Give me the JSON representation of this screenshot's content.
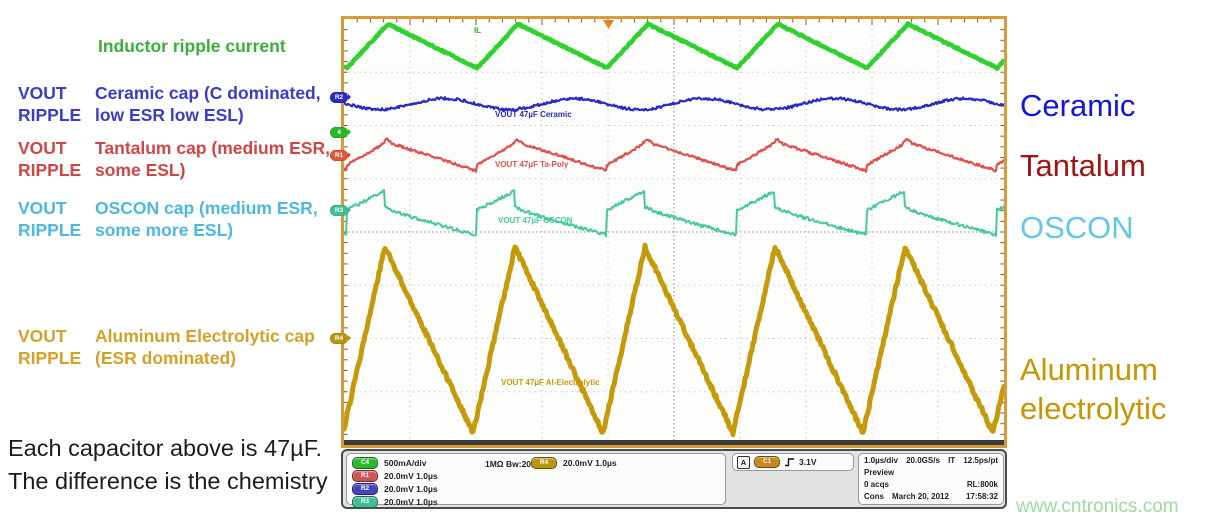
{
  "left_panel": {
    "inductor_label": {
      "text": "Inductor ripple current",
      "color": "#3aae3a"
    },
    "cap_rows": [
      {
        "col1_line1": "VOUT",
        "col1_line2": "RIPPLE",
        "desc_line1": "Ceramic cap (C dominated,",
        "desc_line2": "low ESR low ESL)",
        "color": "#3c3cc8"
      },
      {
        "col1_line1": "VOUT",
        "col1_line2": "RIPPLE",
        "desc_line1": "Tantalum cap (medium ESR,",
        "desc_line2": "some ESL)",
        "color": "#d04545"
      },
      {
        "col1_line1": "VOUT",
        "col1_line2": "RIPPLE",
        "desc_line1": "OSCON cap (medium ESR,",
        "desc_line2": "some more ESL)",
        "color": "#4cb8dc"
      },
      {
        "col1_line1": "VOUT",
        "col1_line2": "RIPPLE",
        "desc_line1": "Aluminum Electrolytic cap",
        "desc_line2": "(ESR dominated)",
        "color": "#d2a125"
      }
    ],
    "footnote_line1": "Each capacitor above is 47µF.",
    "footnote_line2": "The difference is the chemistry"
  },
  "right_panel": {
    "labels": [
      {
        "text": "Ceramic",
        "color": "#1515e0"
      },
      {
        "text": "Tantalum",
        "color": "#a01414"
      },
      {
        "text": "OSCON",
        "color": "#62c6e4"
      },
      {
        "text": "Aluminum",
        "color": "#c79500"
      },
      {
        "text": "electrolytic",
        "color": "#c79500"
      }
    ],
    "watermark": {
      "text": "www.cntronics.com",
      "color": "#9cdc9c"
    }
  },
  "scope": {
    "frame_color": "#d79b3a",
    "trigger_marker_color": "#e8821e",
    "trace_labels": [
      {
        "text": "IL",
        "color": "#2eb82e"
      },
      {
        "text": "VOUT 47µF Ceramic",
        "color": "#2a2ac0"
      },
      {
        "text": "VOUT 47µF Ta-Poly",
        "color": "#e05050"
      },
      {
        "text": "VOUT 47µF OSCON",
        "color": "#45c99a"
      },
      {
        "text": "VOUT 47µF Al-Electrolytic",
        "color": "#c49a0a"
      }
    ],
    "channel_markers": [
      {
        "label": "R2",
        "color": "#2a2ac0"
      },
      {
        "label": "4",
        "color": "#28b828"
      },
      {
        "label": "R1",
        "color": "#e05a3a"
      },
      {
        "label": "R3",
        "color": "#3fbf94"
      },
      {
        "label": "R4",
        "color": "#b8960f"
      }
    ],
    "status_bar": {
      "channels": [
        {
          "badge": "C4",
          "badge_color": "#2db82d",
          "text": "500mA/div"
        },
        {
          "badge": "R1",
          "badge_color": "#cf5454",
          "text": "20.0mV  1.0µs"
        },
        {
          "badge": "R2",
          "badge_color": "#4444bb",
          "text": "20.0mV  1.0µs"
        },
        {
          "badge": "R3",
          "badge_color": "#3fbf8f",
          "text": "20.0mV  1.0µs"
        }
      ],
      "coupling": "1MΩ Bw:20.0M",
      "r4": {
        "badge": "R4",
        "badge_color": "#b8960f",
        "text": "20.0mV  1.0µs"
      },
      "trigger": {
        "mode": "A",
        "source": "C1",
        "source_color": "#c8881f",
        "level": "3.1V"
      },
      "timebase": {
        "row1": [
          "1.0µs/div",
          "20.0GS/s",
          "IT",
          "12.5ps/pt"
        ],
        "row2": "Preview",
        "row3_left": "0 acqs",
        "row3_right": "RL:800k",
        "row4_left": "Cons",
        "row4_mid": "March 20, 2012",
        "row4_right": "17:58:32"
      }
    }
  },
  "chart_data": {
    "type": "line",
    "title": "",
    "x_axis": {
      "per_div": "1.0µs",
      "divisions": 10
    },
    "y_axis": {
      "divisions": 8,
      "scales": [
        "500mA/div (C4)",
        "20.0mV/div (R1,R2,R3,R4)"
      ]
    },
    "grid": {
      "style": "dotted",
      "x_divisions": 10,
      "y_divisions": 8
    },
    "series": [
      {
        "name": "IL (inductor ripple current)",
        "color": "#2ed12e",
        "scale": "500mA/div",
        "shape": "triangle",
        "period_us": 2.0,
        "rise_fraction": 0.31,
        "peak_to_peak_div": 0.83
      },
      {
        "name": "VOUT 47µF Ceramic",
        "color": "#2a2ac0",
        "scale": "20.0mV/div",
        "shape": "small quasi-sinusoidal ripple",
        "period_us": 2.0,
        "peak_to_peak_div": 0.2
      },
      {
        "name": "VOUT 47µF Ta-Poly",
        "color": "#e05050",
        "scale": "20.0mV/div",
        "shape": "ESR ramp ripple with step at switching",
        "period_us": 2.0,
        "peak_to_peak_div": 0.54
      },
      {
        "name": "VOUT 47µF OSCON",
        "color": "#45c99a",
        "scale": "20.0mV/div",
        "shape": "ESR ripple with ESL switching spikes",
        "period_us": 2.0,
        "peak_to_peak_div": 0.82
      },
      {
        "name": "VOUT 47µF Al-Electrolytic",
        "color": "#c49a0a",
        "scale": "20.0mV/div",
        "shape": "large ESR-dominated sawtooth",
        "period_us": 2.0,
        "peak_to_peak_div": 3.5
      }
    ],
    "render": [
      {
        "type": "tri",
        "x0": 3,
        "period": 130,
        "rise": 41,
        "yA": 49,
        "yB": 5,
        "width": 4.5,
        "noise": 0.8,
        "color": "#2ed12e"
      },
      {
        "type": "sine",
        "x0": 3,
        "period": 130,
        "center": 85,
        "amp": 5.5,
        "width": 2.2,
        "noise": 1.3,
        "color": "#2a2ac0"
      },
      {
        "type": "ta",
        "x0": 3,
        "period": 130,
        "rise": 40,
        "yStep": 146,
        "yPeak": 123,
        "yMin": 152,
        "width": 2.2,
        "noise": 1.2,
        "color": "#e05050"
      },
      {
        "type": "oscon",
        "x0": 3,
        "period": 130,
        "rise": 38,
        "yStart": 191,
        "yPeak": 172,
        "yDrop": 188,
        "yMin": 216,
        "width": 2,
        "noise": 1.6,
        "color": "#45c99a"
      },
      {
        "type": "tri",
        "x0": -1,
        "period": 130,
        "rise": 42,
        "yA": 414,
        "yB": 228,
        "width": 5,
        "noise": 2.2,
        "color": "#c49a0a"
      }
    ]
  }
}
